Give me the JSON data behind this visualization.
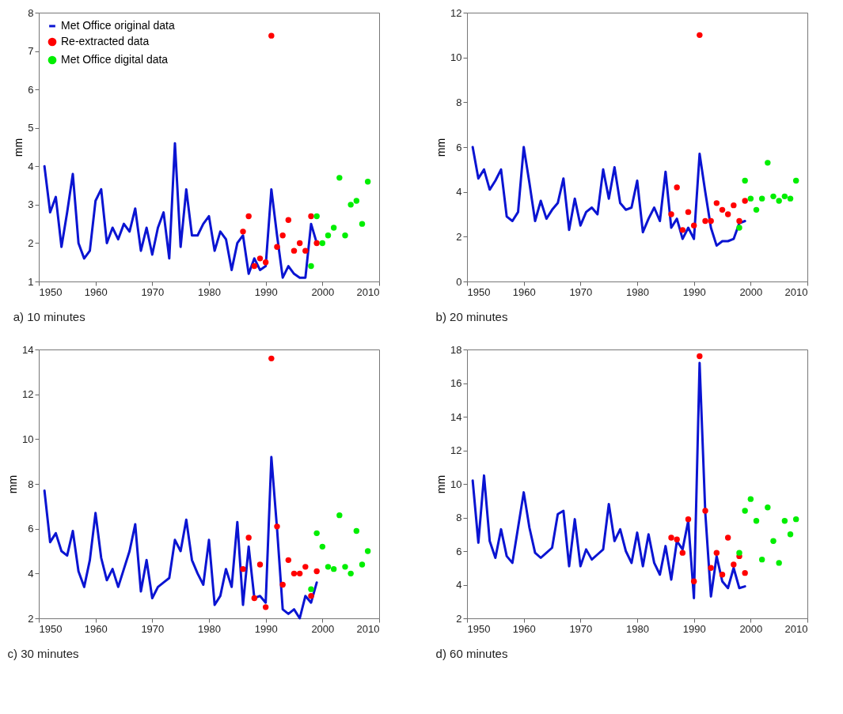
{
  "chart_data": [
    {
      "type": "line",
      "ylabel": "mm",
      "xlim": [
        1950,
        2010
      ],
      "xticks": [
        1950,
        1960,
        1970,
        1980,
        1990,
        2000,
        2010
      ],
      "ylim": [
        1,
        8
      ],
      "yticks": [
        1,
        2,
        3,
        4,
        5,
        6,
        7,
        8
      ],
      "legend": "top left",
      "grid": false,
      "annotations": [
        "a)    10 minutes"
      ],
      "series": [
        {
          "name": "Met Office original data",
          "type": "line",
          "marker": "none",
          "color": "#0a14d2",
          "x": [
            1951,
            1952,
            1953,
            1954,
            1955,
            1956,
            1957,
            1958,
            1959,
            1960,
            1961,
            1962,
            1963,
            1964,
            1965,
            1966,
            1967,
            1968,
            1969,
            1970,
            1971,
            1972,
            1973,
            1974,
            1975,
            1976,
            1977,
            1978,
            1979,
            1980,
            1981,
            1982,
            1983,
            1984,
            1985,
            1986,
            1987,
            1988,
            1989,
            1990,
            1991,
            1992,
            1993,
            1994,
            1995,
            1996,
            1997,
            1998,
            1999
          ],
          "values": [
            4.0,
            2.8,
            3.2,
            1.9,
            2.8,
            3.8,
            2.0,
            1.6,
            1.8,
            3.1,
            3.4,
            2.0,
            2.4,
            2.1,
            2.5,
            2.3,
            2.9,
            1.8,
            2.4,
            1.7,
            2.4,
            2.8,
            1.6,
            4.6,
            1.9,
            3.4,
            2.2,
            2.2,
            2.5,
            2.7,
            1.8,
            2.3,
            2.1,
            1.3,
            2.0,
            2.2,
            1.2,
            1.6,
            1.3,
            1.4,
            3.4,
            2.2,
            1.1,
            1.4,
            1.2,
            1.1,
            1.1,
            2.5,
            2.0
          ]
        },
        {
          "name": "Re-extracted data",
          "type": "scatter",
          "marker": "circle",
          "color": "#ff0000",
          "x": [
            1986,
            1987,
            1988,
            1989,
            1990,
            1991,
            1992,
            1993,
            1994,
            1995,
            1996,
            1997,
            1998,
            1999
          ],
          "values": [
            2.3,
            2.7,
            1.4,
            1.6,
            1.5,
            7.4,
            1.9,
            2.2,
            2.6,
            1.8,
            2.0,
            1.8,
            2.7,
            2.0
          ]
        },
        {
          "name": "Met Office digital data",
          "type": "scatter",
          "marker": "circle",
          "color": "#00ee00",
          "x": [
            1998,
            1999,
            2000,
            2001,
            2002,
            2003,
            2004,
            2005,
            2006,
            2007,
            2008
          ],
          "values": [
            1.4,
            2.7,
            2.0,
            2.2,
            2.4,
            3.7,
            2.2,
            3.0,
            3.1,
            2.5,
            3.6
          ]
        }
      ]
    },
    {
      "type": "line",
      "ylabel": "mm",
      "xlim": [
        1950,
        2010
      ],
      "xticks": [
        1950,
        1960,
        1970,
        1980,
        1990,
        2000,
        2010
      ],
      "ylim": [
        0,
        12
      ],
      "yticks": [
        0,
        2,
        4,
        6,
        8,
        10,
        12
      ],
      "legend": "top left",
      "grid": false,
      "annotations": [
        "b)    20 minutes"
      ],
      "series": [
        {
          "name": "Met Office original data",
          "type": "line",
          "marker": "none",
          "color": "#0a14d2",
          "x": [
            1951,
            1952,
            1953,
            1954,
            1955,
            1956,
            1957,
            1958,
            1959,
            1960,
            1961,
            1962,
            1963,
            1964,
            1965,
            1966,
            1967,
            1968,
            1969,
            1970,
            1971,
            1972,
            1973,
            1974,
            1975,
            1976,
            1977,
            1978,
            1979,
            1980,
            1981,
            1982,
            1983,
            1984,
            1985,
            1986,
            1987,
            1988,
            1989,
            1990,
            1991,
            1992,
            1993,
            1994,
            1995,
            1996,
            1997,
            1998,
            1999
          ],
          "values": [
            6.0,
            4.6,
            5.0,
            4.1,
            4.5,
            5.0,
            2.9,
            2.7,
            3.1,
            6.0,
            4.4,
            2.7,
            3.6,
            2.8,
            3.2,
            3.5,
            4.6,
            2.3,
            3.7,
            2.5,
            3.1,
            3.3,
            3.0,
            5.0,
            3.7,
            5.1,
            3.5,
            3.2,
            3.3,
            4.5,
            2.2,
            2.8,
            3.3,
            2.7,
            4.9,
            2.4,
            2.8,
            1.9,
            2.4,
            1.9,
            5.7,
            4.0,
            2.4,
            1.6,
            1.8,
            1.8,
            1.9,
            2.6,
            2.7
          ]
        },
        {
          "name": "Re-extracted data",
          "type": "scatter",
          "marker": "circle",
          "color": "#ff0000",
          "x": [
            1986,
            1987,
            1988,
            1989,
            1990,
            1991,
            1992,
            1993,
            1994,
            1995,
            1996,
            1997,
            1998,
            1999
          ],
          "values": [
            3.0,
            4.2,
            2.3,
            3.1,
            2.5,
            11.0,
            2.7,
            2.7,
            3.5,
            3.2,
            3.0,
            3.4,
            2.7,
            3.6
          ]
        },
        {
          "name": "Met Office digital data",
          "type": "scatter",
          "marker": "circle",
          "color": "#00ee00",
          "x": [
            1998,
            1999,
            2000,
            2001,
            2002,
            2003,
            2004,
            2005,
            2006,
            2007,
            2008
          ],
          "values": [
            2.4,
            4.5,
            3.7,
            3.2,
            3.7,
            5.3,
            3.8,
            3.6,
            3.8,
            3.7,
            4.5
          ]
        }
      ]
    },
    {
      "type": "line",
      "ylabel": "mm",
      "xlim": [
        1950,
        2010
      ],
      "xticks": [
        1950,
        1960,
        1970,
        1980,
        1990,
        2000,
        2010
      ],
      "ylim": [
        2,
        14
      ],
      "yticks": [
        2,
        4,
        6,
        8,
        10,
        12,
        14
      ],
      "legend": "top left",
      "grid": false,
      "annotations": [
        "c)    30 minutes"
      ],
      "series": [
        {
          "name": "Met Office original data",
          "type": "line",
          "marker": "none",
          "color": "#0a14d2",
          "x": [
            1951,
            1952,
            1953,
            1954,
            1955,
            1956,
            1957,
            1958,
            1959,
            1960,
            1961,
            1962,
            1963,
            1964,
            1965,
            1966,
            1967,
            1968,
            1969,
            1970,
            1971,
            1972,
            1973,
            1974,
            1975,
            1976,
            1977,
            1978,
            1979,
            1980,
            1981,
            1982,
            1983,
            1984,
            1985,
            1986,
            1987,
            1988,
            1989,
            1990,
            1991,
            1992,
            1993,
            1994,
            1995,
            1996,
            1997,
            1998,
            1999
          ],
          "values": [
            7.7,
            5.4,
            5.8,
            5.0,
            4.8,
            5.9,
            4.1,
            3.4,
            4.6,
            6.7,
            4.7,
            3.7,
            4.2,
            3.4,
            4.2,
            5.0,
            6.2,
            3.2,
            4.6,
            2.9,
            3.4,
            3.6,
            3.8,
            5.5,
            5.0,
            6.4,
            4.6,
            4.0,
            3.5,
            5.5,
            2.6,
            3.0,
            4.2,
            3.4,
            6.3,
            2.6,
            5.2,
            2.9,
            3.0,
            2.7,
            9.2,
            6.0,
            2.4,
            2.2,
            2.4,
            2.0,
            3.0,
            2.7,
            3.6
          ]
        },
        {
          "name": "Re-extracted data",
          "type": "scatter",
          "marker": "circle",
          "color": "#ff0000",
          "x": [
            1986,
            1987,
            1988,
            1989,
            1990,
            1991,
            1992,
            1993,
            1994,
            1995,
            1996,
            1997,
            1998,
            1999
          ],
          "values": [
            4.2,
            5.6,
            2.9,
            4.4,
            2.5,
            13.6,
            6.1,
            3.5,
            4.6,
            4.0,
            4.0,
            4.3,
            3.0,
            4.1
          ]
        },
        {
          "name": "Met Office digital data",
          "type": "scatter",
          "marker": "circle",
          "color": "#00ee00",
          "x": [
            1998,
            1999,
            2000,
            2001,
            2002,
            2003,
            2004,
            2005,
            2006,
            2007,
            2008
          ],
          "values": [
            3.3,
            5.8,
            5.2,
            4.3,
            4.2,
            6.6,
            4.3,
            4.0,
            5.9,
            4.4,
            5.0
          ]
        }
      ]
    },
    {
      "type": "line",
      "ylabel": "mm",
      "xlim": [
        1950,
        2010
      ],
      "xticks": [
        1950,
        1960,
        1970,
        1980,
        1990,
        2000,
        2010
      ],
      "ylim": [
        2,
        18
      ],
      "yticks": [
        2,
        4,
        6,
        8,
        10,
        12,
        14,
        16,
        18
      ],
      "legend": "top left",
      "grid": false,
      "annotations": [
        "d)    60 minutes"
      ],
      "series": [
        {
          "name": "Met Office original data",
          "type": "line",
          "marker": "none",
          "color": "#0a14d2",
          "x": [
            1951,
            1952,
            1953,
            1954,
            1955,
            1956,
            1957,
            1958,
            1959,
            1960,
            1961,
            1962,
            1963,
            1964,
            1965,
            1966,
            1967,
            1968,
            1969,
            1970,
            1971,
            1972,
            1973,
            1974,
            1975,
            1976,
            1977,
            1978,
            1979,
            1980,
            1981,
            1982,
            1983,
            1984,
            1985,
            1986,
            1987,
            1988,
            1989,
            1990,
            1991,
            1992,
            1993,
            1994,
            1995,
            1996,
            1997,
            1998,
            1999
          ],
          "values": [
            10.2,
            6.5,
            10.5,
            6.6,
            5.6,
            7.3,
            5.7,
            5.3,
            7.4,
            9.5,
            7.4,
            5.9,
            5.6,
            5.9,
            6.2,
            8.2,
            8.4,
            5.1,
            7.9,
            5.1,
            6.1,
            5.5,
            5.8,
            6.1,
            8.8,
            6.6,
            7.3,
            6.0,
            5.3,
            7.1,
            5.1,
            7.0,
            5.3,
            4.6,
            6.3,
            4.3,
            6.6,
            6.1,
            7.8,
            3.2,
            17.2,
            8.3,
            3.3,
            5.7,
            4.2,
            3.8,
            5.0,
            3.8,
            3.9
          ]
        },
        {
          "name": "Re-extracted data",
          "type": "scatter",
          "marker": "circle",
          "color": "#ff0000",
          "x": [
            1986,
            1987,
            1988,
            1989,
            1990,
            1991,
            1992,
            1993,
            1994,
            1995,
            1996,
            1997,
            1998,
            1999
          ],
          "values": [
            6.8,
            6.7,
            5.9,
            7.9,
            4.2,
            17.6,
            8.4,
            5.0,
            5.9,
            4.6,
            6.8,
            5.2,
            5.7,
            4.7
          ]
        },
        {
          "name": "Met Office digital data",
          "type": "scatter",
          "marker": "circle",
          "color": "#00ee00",
          "x": [
            1998,
            1999,
            2000,
            2001,
            2002,
            2003,
            2004,
            2005,
            2006,
            2007,
            2008
          ],
          "values": [
            5.9,
            8.4,
            9.1,
            7.8,
            5.5,
            8.6,
            6.6,
            5.3,
            7.8,
            7.0,
            7.9
          ]
        }
      ]
    }
  ]
}
